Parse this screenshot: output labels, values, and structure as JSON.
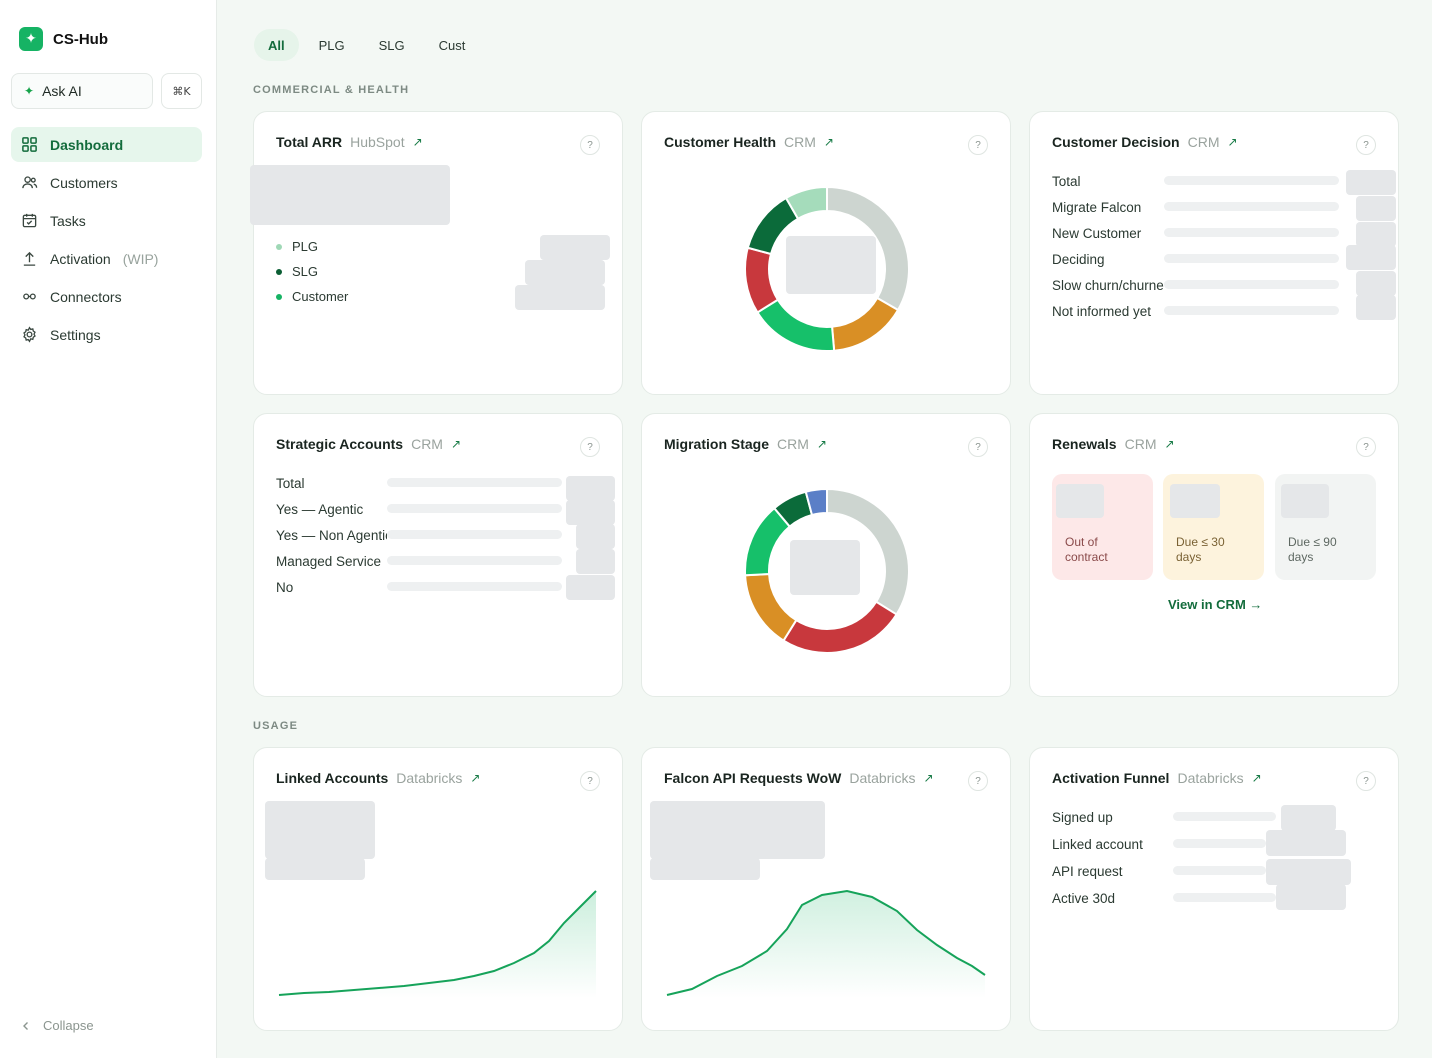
{
  "app": {
    "name": "CS-Hub"
  },
  "sidebar": {
    "ask_ai_label": "Ask AI",
    "shortcut": "⌘K",
    "items": [
      {
        "label": "Dashboard",
        "icon": "grid-icon",
        "active": true
      },
      {
        "label": "Customers",
        "icon": "users-icon"
      },
      {
        "label": "Tasks",
        "icon": "calendar-icon"
      },
      {
        "label": "Activation",
        "suffix": "(WIP)",
        "icon": "upload-icon"
      },
      {
        "label": "Connectors",
        "icon": "link-icon"
      },
      {
        "label": "Settings",
        "icon": "gear-icon"
      }
    ],
    "collapse_label": "Collapse"
  },
  "filters": {
    "tabs": [
      "All",
      "PLG",
      "SLG",
      "Cust"
    ],
    "active": "All"
  },
  "sections": {
    "commercial": "COMMERCIAL & HEALTH",
    "usage": "USAGE"
  },
  "help_label": "?",
  "cards": {
    "total_arr": {
      "title": "Total ARR",
      "source": "HubSpot",
      "legend": [
        {
          "label": "PLG",
          "color": "#9fd8b6"
        },
        {
          "label": "SLG",
          "color": "#0b5e34"
        },
        {
          "label": "Customer",
          "color": "#16b364"
        }
      ]
    },
    "customer_health": {
      "title": "Customer Health",
      "source": "CRM"
    },
    "customer_decision": {
      "title": "Customer Decision",
      "source": "CRM",
      "rows": [
        "Total",
        "Migrate Falcon",
        "New Customer",
        "Deciding",
        "Slow churn/churned",
        "Not informed yet"
      ]
    },
    "strategic_accounts": {
      "title": "Strategic Accounts",
      "source": "CRM",
      "rows": [
        "Total",
        "Yes — Agentic",
        "Yes — Non Agentic",
        "Managed Service",
        "No"
      ]
    },
    "migration_stage": {
      "title": "Migration Stage",
      "source": "CRM"
    },
    "renewals": {
      "title": "Renewals",
      "source": "CRM",
      "tiles": [
        {
          "label_1": "Out of",
          "label_2": "contract",
          "bg": "#fde8e8",
          "color": "#8a4a4a"
        },
        {
          "label_1": "Due ≤ 30",
          "label_2": "days",
          "bg": "#fdf3dd",
          "color": "#7a6234"
        },
        {
          "label_1": "Due ≤ 90",
          "label_2": "days",
          "bg": "#f2f4f3",
          "color": "#5e6862"
        }
      ],
      "link": "View in CRM →"
    },
    "linked_accounts": {
      "title": "Linked Accounts",
      "source": "Databricks"
    },
    "falcon_api": {
      "title": "Falcon API Requests WoW",
      "source": "Databricks"
    },
    "activation_funnel": {
      "title": "Activation Funnel",
      "source": "Databricks",
      "rows": [
        "Signed up",
        "Linked account",
        "API request",
        "Active 30d"
      ]
    }
  },
  "colors": {
    "accent": "#16b364",
    "health_segments": [
      "#cdd5d0",
      "#d98f25",
      "#16c06a",
      "#c8383d",
      "#0b6b3a",
      "#a5dcbb"
    ],
    "migration_segments": [
      "#cdd5d0",
      "#c8383d",
      "#d98f25",
      "#16c06a",
      "#0b6b3a",
      "#5b7fc7"
    ]
  }
}
